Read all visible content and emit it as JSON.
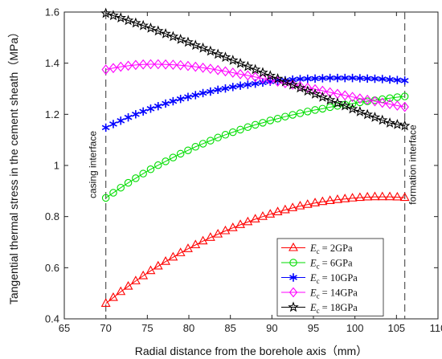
{
  "chart_data": {
    "type": "line",
    "xlabel": "Radial distance from the borehole axis（mm）",
    "ylabel": "Tangential thermal stress in the cement sheath（MPa）",
    "xlim": [
      65,
      110
    ],
    "ylim": [
      0.4,
      1.6
    ],
    "xticks": [
      65,
      70,
      75,
      80,
      85,
      90,
      95,
      100,
      105,
      110
    ],
    "yticks": [
      0.4,
      0.6,
      0.8,
      1.0,
      1.2,
      1.4,
      1.6
    ],
    "xtick_labels": [
      "65",
      "70",
      "75",
      "80",
      "85",
      "90",
      "95",
      "100",
      "105",
      "110"
    ],
    "ytick_labels": [
      "0.4",
      "0.6",
      "0.8",
      "1",
      "1.2",
      "1.4",
      "1.6"
    ],
    "grid": false,
    "legend_position": "bottom-right",
    "annotations": [
      {
        "text": "casing interface",
        "x": 70,
        "orientation": "vertical"
      },
      {
        "text": "formation interface",
        "x": 106,
        "orientation": "vertical"
      }
    ],
    "x": [
      70.0,
      70.9,
      71.8,
      72.7,
      73.6,
      74.5,
      75.4,
      76.3,
      77.2,
      78.1,
      79.0,
      79.9,
      80.8,
      81.7,
      82.6,
      83.5,
      84.4,
      85.3,
      86.2,
      87.1,
      88.0,
      88.9,
      89.8,
      90.7,
      91.6,
      92.5,
      93.4,
      94.3,
      95.2,
      96.1,
      97.0,
      97.9,
      98.8,
      99.7,
      100.6,
      101.5,
      102.4,
      103.3,
      104.2,
      105.1,
      106.0
    ],
    "series": [
      {
        "name": "2GPa",
        "legend_prefix": "E",
        "legend_sub": "c",
        "legend_eq": "= ",
        "color": "#ff0000",
        "marker": "triangle",
        "values": [
          0.46,
          0.483,
          0.506,
          0.527,
          0.548,
          0.568,
          0.588,
          0.606,
          0.624,
          0.641,
          0.658,
          0.674,
          0.689,
          0.704,
          0.718,
          0.731,
          0.744,
          0.756,
          0.768,
          0.779,
          0.79,
          0.8,
          0.809,
          0.818,
          0.826,
          0.834,
          0.841,
          0.847,
          0.853,
          0.858,
          0.862,
          0.866,
          0.869,
          0.872,
          0.874,
          0.876,
          0.877,
          0.877,
          0.877,
          0.876,
          0.874
        ]
      },
      {
        "name": "6GPa",
        "legend_prefix": "E",
        "legend_sub": "c",
        "legend_eq": "= ",
        "color": "#00dd00",
        "marker": "circle",
        "values": [
          0.873,
          0.893,
          0.913,
          0.932,
          0.95,
          0.968,
          0.985,
          1.001,
          1.016,
          1.031,
          1.046,
          1.059,
          1.073,
          1.085,
          1.097,
          1.109,
          1.12,
          1.13,
          1.14,
          1.15,
          1.159,
          1.167,
          1.176,
          1.183,
          1.191,
          1.198,
          1.204,
          1.211,
          1.217,
          1.222,
          1.228,
          1.233,
          1.238,
          1.242,
          1.247,
          1.251,
          1.255,
          1.259,
          1.263,
          1.267,
          1.27
        ]
      },
      {
        "name": "10GPa",
        "legend_prefix": "E",
        "legend_sub": "c",
        "legend_eq": "= ",
        "color": "#0000ff",
        "marker": "star6",
        "values": [
          1.148,
          1.162,
          1.175,
          1.188,
          1.2,
          1.211,
          1.222,
          1.232,
          1.242,
          1.251,
          1.26,
          1.268,
          1.275,
          1.283,
          1.289,
          1.296,
          1.301,
          1.307,
          1.312,
          1.316,
          1.32,
          1.324,
          1.328,
          1.331,
          1.333,
          1.336,
          1.338,
          1.339,
          1.34,
          1.341,
          1.342,
          1.342,
          1.342,
          1.342,
          1.341,
          1.34,
          1.339,
          1.338,
          1.336,
          1.334,
          1.332
        ]
      },
      {
        "name": "14GPa",
        "legend_prefix": "E",
        "legend_sub": "c",
        "legend_eq": "= ",
        "color": "#ff00ff",
        "marker": "diamond",
        "values": [
          1.375,
          1.381,
          1.386,
          1.39,
          1.393,
          1.395,
          1.396,
          1.396,
          1.395,
          1.394,
          1.392,
          1.389,
          1.386,
          1.382,
          1.378,
          1.373,
          1.368,
          1.363,
          1.357,
          1.352,
          1.346,
          1.34,
          1.334,
          1.328,
          1.322,
          1.316,
          1.31,
          1.304,
          1.298,
          1.292,
          1.286,
          1.28,
          1.274,
          1.268,
          1.262,
          1.257,
          1.251,
          1.245,
          1.24,
          1.234,
          1.229
        ]
      },
      {
        "name": "18GPa",
        "legend_prefix": "E",
        "legend_sub": "c",
        "legend_eq": "= ",
        "color": "#000000",
        "marker": "star5",
        "values": [
          1.595,
          1.586,
          1.577,
          1.567,
          1.557,
          1.547,
          1.537,
          1.526,
          1.515,
          1.504,
          1.493,
          1.482,
          1.47,
          1.459,
          1.447,
          1.435,
          1.423,
          1.411,
          1.399,
          1.387,
          1.375,
          1.363,
          1.351,
          1.339,
          1.327,
          1.315,
          1.303,
          1.291,
          1.279,
          1.267,
          1.256,
          1.244,
          1.233,
          1.221,
          1.21,
          1.199,
          1.188,
          1.177,
          1.166,
          1.16,
          1.155
        ]
      }
    ]
  }
}
